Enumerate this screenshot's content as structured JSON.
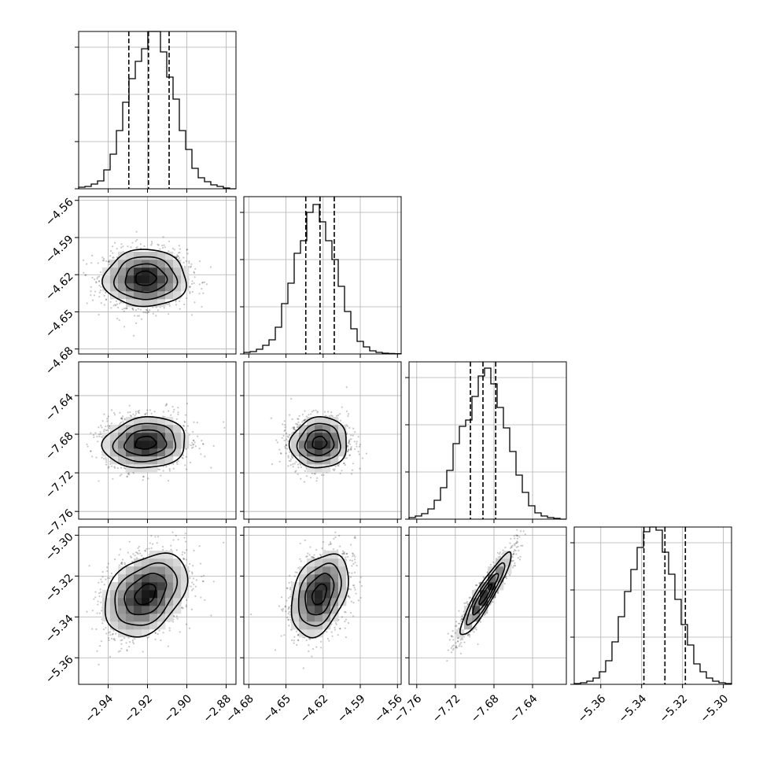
{
  "chart_data": {
    "type": "corner",
    "variables": [
      {
        "range": [
          -2.955,
          -2.875
        ],
        "ticks": [
          -2.94,
          -2.92,
          -2.9,
          -2.88
        ],
        "tick_labels": [
          "−2.94",
          "−2.92",
          "−2.90",
          "−2.88"
        ],
        "quantiles": [
          -2.9295,
          -2.9195,
          -2.909
        ],
        "hist": [
          1,
          1.5,
          3,
          5,
          12,
          22,
          37,
          55,
          70,
          81,
          89,
          100,
          100,
          87,
          71,
          57,
          37,
          25,
          13,
          7,
          4.5,
          2.5,
          1.5,
          0.5,
          0
        ]
      },
      {
        "range": [
          -4.684,
          -4.557
        ],
        "ticks": [
          -4.68,
          -4.65,
          -4.62,
          -4.59,
          -4.56
        ],
        "tick_labels": [
          "−4.68",
          "−4.65",
          "−4.62",
          "−4.59",
          "−4.56"
        ],
        "quantiles": [
          -4.634,
          -4.6225,
          -4.611
        ],
        "hist": [
          1,
          1.5,
          3,
          5.5,
          9,
          17,
          32,
          45,
          64,
          72,
          90,
          95,
          84,
          72,
          60,
          43,
          27,
          16,
          8,
          4.5,
          2,
          1,
          0.5,
          0.3,
          0.2
        ]
      },
      {
        "range": [
          -7.768,
          -7.605
        ],
        "ticks": [
          -7.76,
          -7.72,
          -7.68,
          -7.64
        ],
        "tick_labels": [
          "−7.76",
          "−7.72",
          "−7.68",
          "−7.64"
        ],
        "quantiles": [
          -7.7044,
          -7.6914,
          -7.6782
        ],
        "hist": [
          1,
          2,
          3.5,
          6.5,
          12,
          20,
          31,
          48,
          59,
          63,
          78,
          91,
          96,
          86,
          71,
          58,
          43,
          28,
          17,
          8.5,
          4,
          2,
          1,
          0.5,
          0
        ]
      },
      {
        "range": [
          -5.373,
          -5.296
        ],
        "ticks": [
          -5.36,
          -5.34,
          -5.32,
          -5.3
        ],
        "tick_labels": [
          "−5.36",
          "−5.34",
          "−5.32",
          "−5.30"
        ],
        "quantiles": [
          -5.3389,
          -5.3286,
          -5.3186
        ],
        "hist": [
          0.5,
          1,
          2,
          4,
          8,
          15,
          27,
          43,
          59,
          73,
          87,
          97,
          100,
          98,
          84,
          70,
          54,
          38,
          25,
          13,
          8,
          4,
          2,
          1,
          0.5
        ]
      }
    ],
    "centers": [
      -2.921,
      -4.623,
      -7.689,
      -5.329
    ],
    "sigmas": [
      0.0105,
      0.0115,
      0.0132,
      0.0101
    ],
    "correlations": [
      [
        1,
        0,
        0.1,
        0.35
      ],
      [
        0,
        1,
        0.05,
        0.35
      ],
      [
        0.1,
        0.05,
        1,
        0.92
      ],
      [
        0.35,
        0.35,
        0.92,
        1
      ]
    ],
    "hist_ylim": [
      0,
      100
    ],
    "hist_ticks": [
      0,
      30,
      60,
      90
    ],
    "contour_levels_sigma": [
      0.5,
      1.0,
      1.5,
      2.0
    ],
    "grid": true,
    "xlabels": [
      "",
      "",
      "",
      ""
    ],
    "ylabels": [
      "",
      "",
      "",
      ""
    ]
  }
}
